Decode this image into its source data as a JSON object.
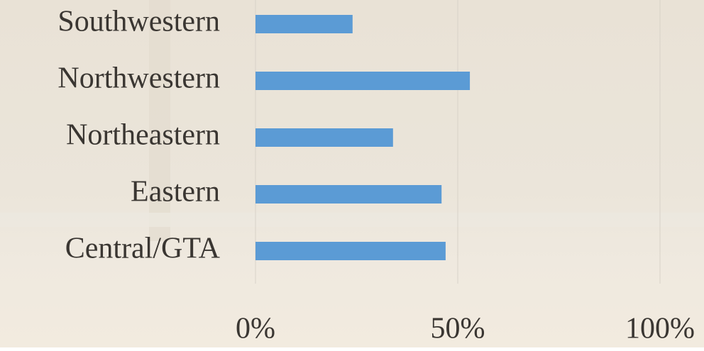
{
  "chart_data": {
    "type": "bar",
    "orientation": "horizontal",
    "categories": [
      "Southwestern",
      "Northwestern",
      "Northeastern",
      "Eastern",
      "Central/GTA"
    ],
    "values": [
      24,
      53,
      34,
      46,
      47
    ],
    "color": "#5b9bd5",
    "xlim": [
      0,
      100
    ],
    "xticks": [
      {
        "value": 0,
        "label": "0%"
      },
      {
        "value": 50,
        "label": "50%"
      },
      {
        "value": 100,
        "label": "100%"
      }
    ],
    "grid": true
  }
}
